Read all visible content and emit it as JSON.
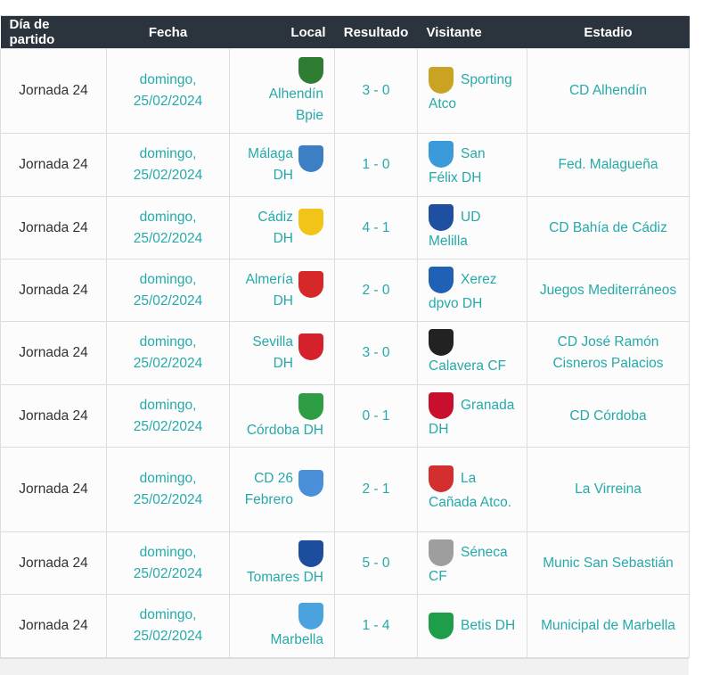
{
  "headers": [
    "Día de partido",
    "Fecha",
    "Local",
    "Resultado",
    "Visitante",
    "Estadio"
  ],
  "colors": {
    "header_bg": "#2b343d",
    "link": "#27a9a9"
  },
  "rows": [
    {
      "jornada": "Jornada 24",
      "fecha": "domingo, 25/02/2024",
      "local": "Alhendín Bpie",
      "local_logo": "#2e7d32",
      "resultado": "3 - 0",
      "visitante": "Sporting Atco",
      "vis_logo": "#c9a321",
      "estadio": "CD Alhendín"
    },
    {
      "jornada": "Jornada 24",
      "fecha": "domingo, 25/02/2024",
      "local": "Málaga DH",
      "local_logo": "#3c7fc4",
      "resultado": "1 - 0",
      "visitante": "San Félix DH",
      "vis_logo": "#3b9ad9",
      "estadio": "Fed. Malagueña"
    },
    {
      "jornada": "Jornada 24",
      "fecha": "domingo, 25/02/2024",
      "local": "Cádiz DH",
      "local_logo": "#f2c418",
      "resultado": "4 - 1",
      "visitante": "UD Melilla",
      "vis_logo": "#1f4fa0",
      "estadio": "CD Bahía de Cádiz"
    },
    {
      "jornada": "Jornada 24",
      "fecha": "domingo, 25/02/2024",
      "local": "Almería DH",
      "local_logo": "#d62828",
      "resultado": "2 - 0",
      "visitante": "Xerez dpvo DH",
      "vis_logo": "#1f62b5",
      "estadio": "Juegos Mediterráneos"
    },
    {
      "jornada": "Jornada 24",
      "fecha": "domingo, 25/02/2024",
      "local": "Sevilla DH",
      "local_logo": "#d4212b",
      "resultado": "3 - 0",
      "visitante": "Calavera CF",
      "vis_logo": "#222222",
      "estadio": "CD José Ramón Cisneros Palacios"
    },
    {
      "jornada": "Jornada 24",
      "fecha": "domingo, 25/02/2024",
      "local": "Córdoba DH",
      "local_logo": "#2e9e45",
      "resultado": "0 - 1",
      "visitante": "Granada DH",
      "vis_logo": "#c8102e",
      "estadio": "CD Córdoba"
    },
    {
      "jornada": "Jornada 24",
      "fecha": "domingo, 25/02/2024",
      "local": "CD 26 Febrero",
      "local_logo": "#4a90d9",
      "resultado": "2 - 1",
      "visitante": "La Cañada Atco.",
      "vis_logo": "#d32f2f",
      "estadio": "La Virreina"
    },
    {
      "jornada": "Jornada 24",
      "fecha": "domingo, 25/02/2024",
      "local": "Tomares DH",
      "local_logo": "#1d4e9e",
      "resultado": "5 - 0",
      "visitante": "Séneca CF",
      "vis_logo": "#9e9e9e",
      "estadio": "Munic San Sebastián"
    },
    {
      "jornada": "Jornada 24",
      "fecha": "domingo, 25/02/2024",
      "local": "Marbella",
      "local_logo": "#4aa3df",
      "resultado": "1 - 4",
      "visitante": "Betis DH",
      "vis_logo": "#1e9e4a",
      "estadio": "Municipal de Marbella"
    }
  ]
}
